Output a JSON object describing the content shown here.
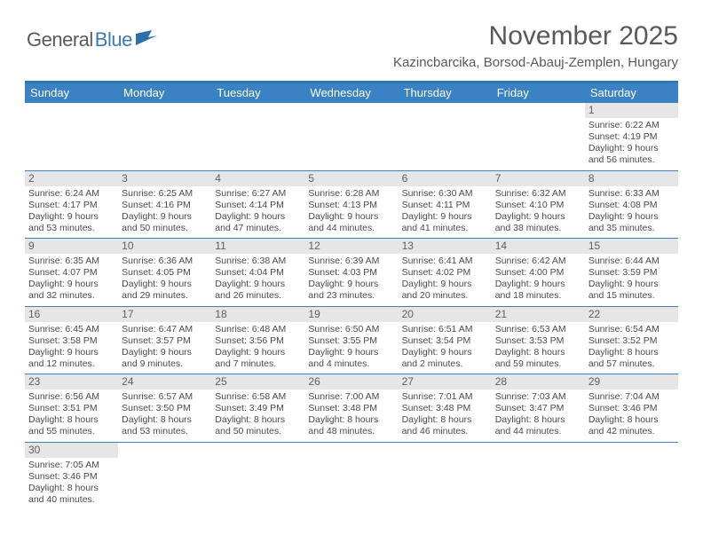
{
  "logo": {
    "text1": "General",
    "text2": "Blue"
  },
  "title": "November 2025",
  "subtitle": "Kazincbarcika, Borsod-Abauj-Zemplen, Hungary",
  "colors": {
    "header_bg": "#3a82c4",
    "header_border": "#2f78b7",
    "daynum_bg": "#e6e6e6",
    "text": "#4a4a4a",
    "title_color": "#595959"
  },
  "day_headers": [
    "Sunday",
    "Monday",
    "Tuesday",
    "Wednesday",
    "Thursday",
    "Friday",
    "Saturday"
  ],
  "weeks": [
    [
      null,
      null,
      null,
      null,
      null,
      null,
      {
        "n": "1",
        "sr": "Sunrise: 6:22 AM",
        "ss": "Sunset: 4:19 PM",
        "d1": "Daylight: 9 hours",
        "d2": "and 56 minutes."
      }
    ],
    [
      {
        "n": "2",
        "sr": "Sunrise: 6:24 AM",
        "ss": "Sunset: 4:17 PM",
        "d1": "Daylight: 9 hours",
        "d2": "and 53 minutes."
      },
      {
        "n": "3",
        "sr": "Sunrise: 6:25 AM",
        "ss": "Sunset: 4:16 PM",
        "d1": "Daylight: 9 hours",
        "d2": "and 50 minutes."
      },
      {
        "n": "4",
        "sr": "Sunrise: 6:27 AM",
        "ss": "Sunset: 4:14 PM",
        "d1": "Daylight: 9 hours",
        "d2": "and 47 minutes."
      },
      {
        "n": "5",
        "sr": "Sunrise: 6:28 AM",
        "ss": "Sunset: 4:13 PM",
        "d1": "Daylight: 9 hours",
        "d2": "and 44 minutes."
      },
      {
        "n": "6",
        "sr": "Sunrise: 6:30 AM",
        "ss": "Sunset: 4:11 PM",
        "d1": "Daylight: 9 hours",
        "d2": "and 41 minutes."
      },
      {
        "n": "7",
        "sr": "Sunrise: 6:32 AM",
        "ss": "Sunset: 4:10 PM",
        "d1": "Daylight: 9 hours",
        "d2": "and 38 minutes."
      },
      {
        "n": "8",
        "sr": "Sunrise: 6:33 AM",
        "ss": "Sunset: 4:08 PM",
        "d1": "Daylight: 9 hours",
        "d2": "and 35 minutes."
      }
    ],
    [
      {
        "n": "9",
        "sr": "Sunrise: 6:35 AM",
        "ss": "Sunset: 4:07 PM",
        "d1": "Daylight: 9 hours",
        "d2": "and 32 minutes."
      },
      {
        "n": "10",
        "sr": "Sunrise: 6:36 AM",
        "ss": "Sunset: 4:05 PM",
        "d1": "Daylight: 9 hours",
        "d2": "and 29 minutes."
      },
      {
        "n": "11",
        "sr": "Sunrise: 6:38 AM",
        "ss": "Sunset: 4:04 PM",
        "d1": "Daylight: 9 hours",
        "d2": "and 26 minutes."
      },
      {
        "n": "12",
        "sr": "Sunrise: 6:39 AM",
        "ss": "Sunset: 4:03 PM",
        "d1": "Daylight: 9 hours",
        "d2": "and 23 minutes."
      },
      {
        "n": "13",
        "sr": "Sunrise: 6:41 AM",
        "ss": "Sunset: 4:02 PM",
        "d1": "Daylight: 9 hours",
        "d2": "and 20 minutes."
      },
      {
        "n": "14",
        "sr": "Sunrise: 6:42 AM",
        "ss": "Sunset: 4:00 PM",
        "d1": "Daylight: 9 hours",
        "d2": "and 18 minutes."
      },
      {
        "n": "15",
        "sr": "Sunrise: 6:44 AM",
        "ss": "Sunset: 3:59 PM",
        "d1": "Daylight: 9 hours",
        "d2": "and 15 minutes."
      }
    ],
    [
      {
        "n": "16",
        "sr": "Sunrise: 6:45 AM",
        "ss": "Sunset: 3:58 PM",
        "d1": "Daylight: 9 hours",
        "d2": "and 12 minutes."
      },
      {
        "n": "17",
        "sr": "Sunrise: 6:47 AM",
        "ss": "Sunset: 3:57 PM",
        "d1": "Daylight: 9 hours",
        "d2": "and 9 minutes."
      },
      {
        "n": "18",
        "sr": "Sunrise: 6:48 AM",
        "ss": "Sunset: 3:56 PM",
        "d1": "Daylight: 9 hours",
        "d2": "and 7 minutes."
      },
      {
        "n": "19",
        "sr": "Sunrise: 6:50 AM",
        "ss": "Sunset: 3:55 PM",
        "d1": "Daylight: 9 hours",
        "d2": "and 4 minutes."
      },
      {
        "n": "20",
        "sr": "Sunrise: 6:51 AM",
        "ss": "Sunset: 3:54 PM",
        "d1": "Daylight: 9 hours",
        "d2": "and 2 minutes."
      },
      {
        "n": "21",
        "sr": "Sunrise: 6:53 AM",
        "ss": "Sunset: 3:53 PM",
        "d1": "Daylight: 8 hours",
        "d2": "and 59 minutes."
      },
      {
        "n": "22",
        "sr": "Sunrise: 6:54 AM",
        "ss": "Sunset: 3:52 PM",
        "d1": "Daylight: 8 hours",
        "d2": "and 57 minutes."
      }
    ],
    [
      {
        "n": "23",
        "sr": "Sunrise: 6:56 AM",
        "ss": "Sunset: 3:51 PM",
        "d1": "Daylight: 8 hours",
        "d2": "and 55 minutes."
      },
      {
        "n": "24",
        "sr": "Sunrise: 6:57 AM",
        "ss": "Sunset: 3:50 PM",
        "d1": "Daylight: 8 hours",
        "d2": "and 53 minutes."
      },
      {
        "n": "25",
        "sr": "Sunrise: 6:58 AM",
        "ss": "Sunset: 3:49 PM",
        "d1": "Daylight: 8 hours",
        "d2": "and 50 minutes."
      },
      {
        "n": "26",
        "sr": "Sunrise: 7:00 AM",
        "ss": "Sunset: 3:48 PM",
        "d1": "Daylight: 8 hours",
        "d2": "and 48 minutes."
      },
      {
        "n": "27",
        "sr": "Sunrise: 7:01 AM",
        "ss": "Sunset: 3:48 PM",
        "d1": "Daylight: 8 hours",
        "d2": "and 46 minutes."
      },
      {
        "n": "28",
        "sr": "Sunrise: 7:03 AM",
        "ss": "Sunset: 3:47 PM",
        "d1": "Daylight: 8 hours",
        "d2": "and 44 minutes."
      },
      {
        "n": "29",
        "sr": "Sunrise: 7:04 AM",
        "ss": "Sunset: 3:46 PM",
        "d1": "Daylight: 8 hours",
        "d2": "and 42 minutes."
      }
    ],
    [
      {
        "n": "30",
        "sr": "Sunrise: 7:05 AM",
        "ss": "Sunset: 3:46 PM",
        "d1": "Daylight: 8 hours",
        "d2": "and 40 minutes."
      },
      null,
      null,
      null,
      null,
      null,
      null
    ]
  ]
}
